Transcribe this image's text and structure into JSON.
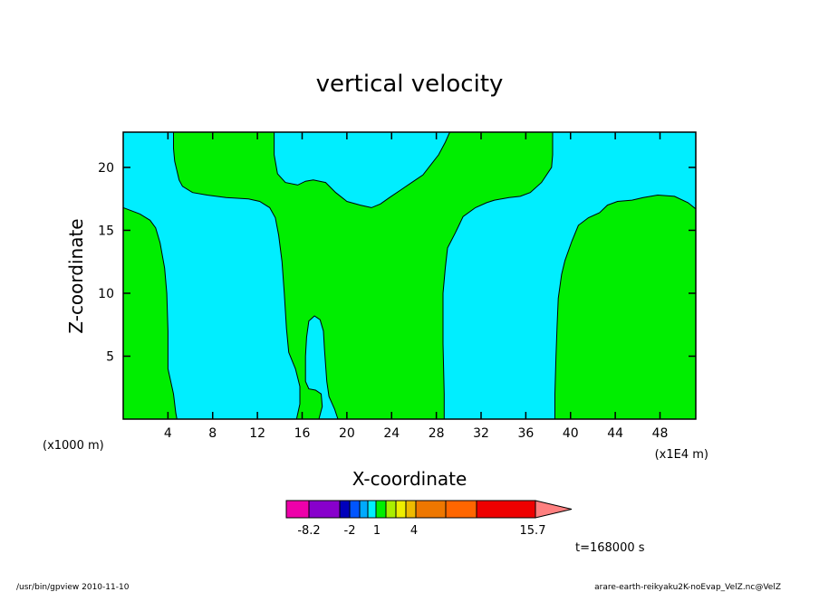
{
  "chart_data": {
    "type": "contour",
    "title": "vertical velocity",
    "xlabel": "X-coordinate",
    "ylabel": "Z-coordinate",
    "x_unit": "(x1E4 m)",
    "z_unit": "(x1000 m)",
    "xlim": [
      0,
      51.2
    ],
    "ylim": [
      0,
      22.8
    ],
    "x_ticks": [
      4,
      8,
      12,
      16,
      20,
      24,
      28,
      32,
      36,
      40,
      44,
      48
    ],
    "x_tick_labels": [
      "4",
      "8",
      "12",
      "16",
      "20",
      "24",
      "28",
      "32",
      "36",
      "40",
      "44",
      "48"
    ],
    "y_ticks": [
      5,
      10,
      15,
      20
    ],
    "y_tick_labels": [
      "5",
      "10",
      "15",
      "20"
    ],
    "background_color": "#00eeff",
    "regions": [
      {
        "name": "green-left",
        "color": "#00ee00",
        "points": [
          [
            0,
            0
          ],
          [
            4.8,
            0
          ],
          [
            4.7,
            0.5
          ],
          [
            4.5,
            2
          ],
          [
            4,
            4
          ],
          [
            4,
            7
          ],
          [
            3.9,
            10
          ],
          [
            3.7,
            12
          ],
          [
            3.3,
            14
          ],
          [
            2.9,
            15.2
          ],
          [
            2.4,
            15.8
          ],
          [
            1.5,
            16.3
          ],
          [
            0.6,
            16.6
          ],
          [
            0,
            16.8
          ]
        ]
      },
      {
        "name": "green-central",
        "color": "#00ee00",
        "points": [
          [
            4.5,
            22.8
          ],
          [
            13.5,
            22.8
          ],
          [
            13.5,
            21
          ],
          [
            13.8,
            19.5
          ],
          [
            14.5,
            18.8
          ],
          [
            15.6,
            18.6
          ],
          [
            16.3,
            18.9
          ],
          [
            17,
            19
          ],
          [
            18.1,
            18.8
          ],
          [
            19,
            18
          ],
          [
            20,
            17.3
          ],
          [
            21.2,
            17
          ],
          [
            22.2,
            16.8
          ],
          [
            23,
            17.1
          ],
          [
            23.8,
            17.6
          ],
          [
            24.8,
            18.2
          ],
          [
            25.8,
            18.8
          ],
          [
            26.8,
            19.4
          ],
          [
            27.5,
            20.2
          ],
          [
            28.2,
            21
          ],
          [
            28.8,
            22
          ],
          [
            29.2,
            22.8
          ],
          [
            38.4,
            22.8
          ],
          [
            38.4,
            21
          ],
          [
            38.3,
            20
          ],
          [
            37.4,
            18.8
          ],
          [
            36.4,
            18
          ],
          [
            35.5,
            17.7
          ],
          [
            34.5,
            17.6
          ],
          [
            33.2,
            17.4
          ],
          [
            32.5,
            17.2
          ],
          [
            31.5,
            16.8
          ],
          [
            30.4,
            16.1
          ],
          [
            29.7,
            14.8
          ],
          [
            29,
            13.6
          ],
          [
            28.8,
            12
          ],
          [
            28.6,
            10
          ],
          [
            28.6,
            6
          ],
          [
            28.7,
            2
          ],
          [
            28.7,
            0
          ],
          [
            19.2,
            0
          ],
          [
            18.9,
            0.8
          ],
          [
            18.4,
            1.8
          ],
          [
            18.2,
            3
          ],
          [
            18,
            5.5
          ],
          [
            17.9,
            7
          ],
          [
            17.6,
            7.9
          ],
          [
            17.1,
            8.2
          ],
          [
            16.6,
            7.8
          ],
          [
            16.4,
            6.5
          ],
          [
            16.3,
            5
          ],
          [
            16.3,
            3
          ],
          [
            16.6,
            2.4
          ],
          [
            17.2,
            2.3
          ],
          [
            17.7,
            2
          ],
          [
            17.8,
            1
          ],
          [
            17.5,
            0
          ],
          [
            15.5,
            0
          ],
          [
            15.8,
            1.2
          ],
          [
            15.8,
            2.6
          ],
          [
            15.4,
            4
          ],
          [
            14.8,
            5.3
          ],
          [
            14.6,
            7.2
          ],
          [
            14.4,
            10
          ],
          [
            14.2,
            12.5
          ],
          [
            13.9,
            14.6
          ],
          [
            13.6,
            16
          ],
          [
            13.1,
            16.8
          ],
          [
            12.2,
            17.3
          ],
          [
            11.2,
            17.5
          ],
          [
            9.2,
            17.6
          ],
          [
            7.5,
            17.8
          ],
          [
            6.2,
            18
          ],
          [
            5.3,
            18.5
          ],
          [
            5,
            19
          ],
          [
            4.6,
            20.5
          ],
          [
            4.5,
            21.5
          ]
        ]
      },
      {
        "name": "green-right",
        "color": "#00ee00",
        "points": [
          [
            38.6,
            0
          ],
          [
            51.2,
            0
          ],
          [
            51.2,
            16.7
          ],
          [
            50.5,
            17.2
          ],
          [
            49.3,
            17.7
          ],
          [
            47.8,
            17.8
          ],
          [
            46.5,
            17.6
          ],
          [
            45.5,
            17.4
          ],
          [
            44.2,
            17.3
          ],
          [
            43.3,
            17
          ],
          [
            42.6,
            16.4
          ],
          [
            41.6,
            16
          ],
          [
            40.7,
            15.4
          ],
          [
            40.1,
            14.1
          ],
          [
            39.5,
            12.6
          ],
          [
            39.2,
            11.5
          ],
          [
            38.9,
            9.6
          ],
          [
            38.8,
            7.4
          ],
          [
            38.7,
            5
          ],
          [
            38.6,
            2
          ]
        ]
      }
    ],
    "colorbar": {
      "colors": [
        "#ee00aa",
        "#8800cc",
        "#0000bb",
        "#0055ff",
        "#00aaff",
        "#00eeff",
        "#00ee00",
        "#aaee00",
        "#eeee00",
        "#eebb00",
        "#ee7700",
        "#ff6600",
        "#ee0000",
        "#ff8080",
        "#ffaaaa"
      ],
      "tick_labels": [
        "-8.2",
        "-2",
        "1",
        "4",
        "15.7"
      ]
    },
    "time_label": "t=168000 s"
  },
  "footer": {
    "left": "/usr/bin/gpview  2010-11-10",
    "right": "arare-earth-reikyaku2K-noEvap_VelZ.nc@VelZ"
  }
}
